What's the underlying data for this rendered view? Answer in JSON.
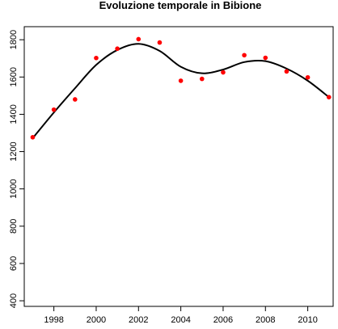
{
  "chart_data": {
    "type": "scatter",
    "title": "Evoluzione temporale in Bibione",
    "xlabel": "",
    "ylabel": "",
    "xlim": [
      1996.6,
      2011.2
    ],
    "ylim": [
      370,
      1870
    ],
    "x_ticks": [
      1998,
      2000,
      2002,
      2004,
      2006,
      2008,
      2010
    ],
    "y_ticks": [
      400,
      600,
      800,
      1000,
      1200,
      1400,
      1600,
      1800
    ],
    "grid": false,
    "series": [
      {
        "kind": "points",
        "color": "#ff0000",
        "x": [
          1997,
          1998,
          1999,
          2000,
          2001,
          2002,
          2003,
          2004,
          2005,
          2006,
          2007,
          2008,
          2009,
          2010,
          2011
        ],
        "y": [
          1277,
          1425,
          1480,
          1702,
          1752,
          1803,
          1785,
          1580,
          1590,
          1625,
          1717,
          1703,
          1630,
          1598,
          1492
        ]
      },
      {
        "kind": "smooth-line",
        "color": "#000000",
        "x": [
          1997,
          1998,
          1999,
          2000,
          2001,
          2002,
          2003,
          2004,
          2005,
          2006,
          2007,
          2008,
          2009,
          2010,
          2011
        ],
        "y": [
          1272,
          1410,
          1540,
          1665,
          1745,
          1778,
          1740,
          1655,
          1620,
          1640,
          1680,
          1685,
          1645,
          1580,
          1492
        ]
      }
    ]
  }
}
